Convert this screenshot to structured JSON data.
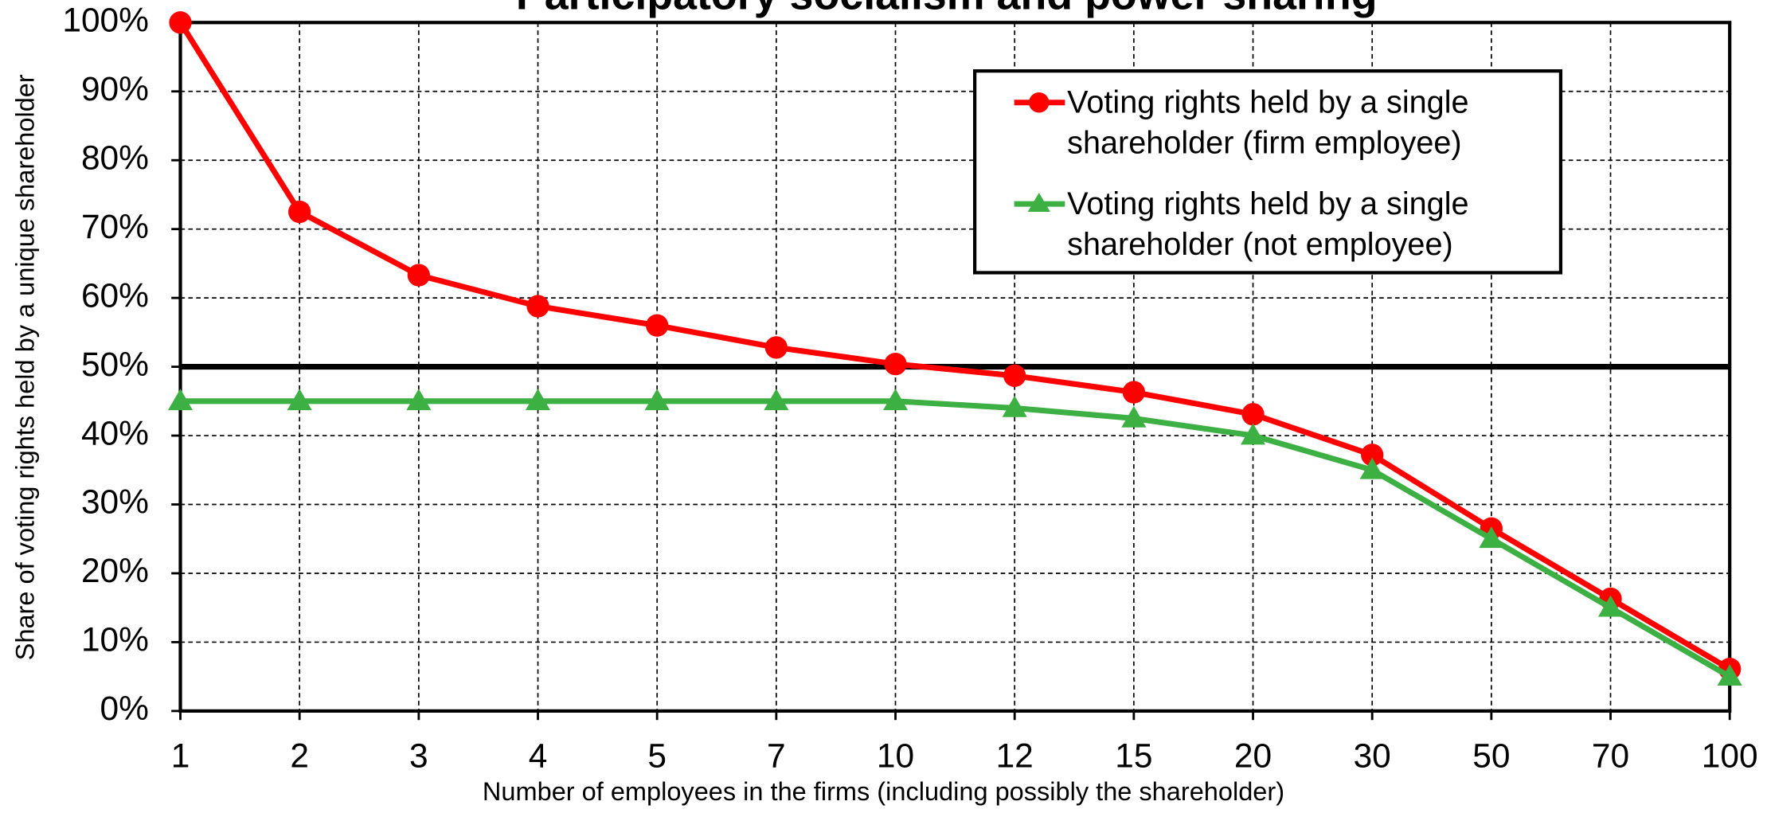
{
  "chart_data": {
    "type": "line",
    "title": "Participatory socialism and power sharing",
    "x_label": "Number of employees in the firms (including possibly the shareholder)",
    "y_label": "Share of voting rights held by a unique shareholder",
    "categories": [
      "1",
      "2",
      "3",
      "4",
      "5",
      "7",
      "10",
      "12",
      "15",
      "20",
      "30",
      "50",
      "70",
      "100"
    ],
    "series": [
      {
        "name": "Voting rights held by a single shareholder (firm employee)",
        "color": "#ff0000",
        "marker": "circle",
        "values": [
          100,
          72.5,
          63.3,
          58.8,
          56,
          52.8,
          50.4,
          48.7,
          46.3,
          43.1,
          37.2,
          26.5,
          16.3,
          6.1
        ]
      },
      {
        "name": "Voting rights held by a single shareholder (not employee)",
        "color": "#3cb043",
        "marker": "triangle",
        "values": [
          45,
          45,
          45,
          45,
          45,
          45,
          45,
          44,
          42.5,
          40,
          35,
          25,
          15,
          5
        ]
      }
    ],
    "reference_line": 50,
    "ylim": [
      0,
      100
    ],
    "yticks": [
      {
        "value": 0,
        "label": "0%"
      },
      {
        "value": 10,
        "label": "10%"
      },
      {
        "value": 20,
        "label": "20%"
      },
      {
        "value": 30,
        "label": "30%"
      },
      {
        "value": 40,
        "label": "40%"
      },
      {
        "value": 50,
        "label": "50%"
      },
      {
        "value": 60,
        "label": "60%"
      },
      {
        "value": 70,
        "label": "70%"
      },
      {
        "value": 80,
        "label": "80%"
      },
      {
        "value": 90,
        "label": "90%"
      },
      {
        "value": 100,
        "label": "100%"
      }
    ],
    "grid": true,
    "legend": "upper right"
  }
}
